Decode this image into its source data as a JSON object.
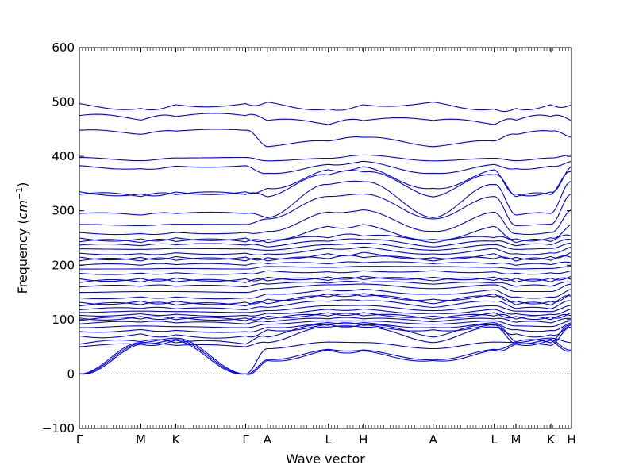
{
  "chart_data": {
    "type": "line",
    "title": "",
    "xlabel": "Wave vector",
    "ylabel": "Frequency ($cm^{-1}$)",
    "ylabel_parts": {
      "text": "Frequency (",
      "unit_base": "cm",
      "unit_exp": "−1",
      "close": ")"
    },
    "ylim": [
      -100,
      600
    ],
    "yticks": [
      -100,
      0,
      100,
      200,
      300,
      400,
      500,
      600
    ],
    "grid": false,
    "legend": "none",
    "line_color": "#0000ff",
    "zero_line": {
      "y": 0,
      "style": "dotted",
      "color": "#000000"
    },
    "xlim": [
      0,
      1
    ],
    "high_symmetry_points": [
      {
        "label": "Γ",
        "x": 0.0
      },
      {
        "label": "M",
        "x": 0.125
      },
      {
        "label": "K",
        "x": 0.196
      },
      {
        "label": "Γ",
        "x": 0.338
      },
      {
        "label": "A",
        "x": 0.382
      },
      {
        "label": "L",
        "x": 0.506
      },
      {
        "label": "H",
        "x": 0.577
      },
      {
        "label": "A",
        "x": 0.719
      },
      {
        "label": "L",
        "x": 0.843
      },
      {
        "label": "M",
        "x": 0.887
      },
      {
        "label": "K",
        "x": 958,
        "x_unit_note": ""
      },
      {
        "label": "H",
        "x": 1.0
      }
    ],
    "segments": [
      {
        "from": "Γ",
        "to": "M"
      },
      {
        "from": "M",
        "to": "K"
      },
      {
        "from": "K",
        "to": "Γ"
      },
      {
        "from": "Γ",
        "to": "A"
      },
      {
        "from": "A",
        "to": "L"
      },
      {
        "from": "L",
        "to": "H"
      },
      {
        "from": "H",
        "to": "A"
      },
      {
        "from": "A",
        "to": "L"
      },
      {
        "from": "L",
        "to": "M"
      },
      {
        "from": "M",
        "to": "K"
      },
      {
        "from": "K",
        "to": "H"
      }
    ],
    "bands_at_gamma": [
      0,
      0,
      0,
      50,
      55,
      70,
      78,
      85,
      92,
      98,
      103,
      108,
      113,
      118,
      125,
      132,
      140,
      150,
      160,
      168,
      175,
      185,
      193,
      200,
      208,
      215,
      222,
      230,
      237,
      243,
      250,
      260,
      275,
      295,
      330,
      335,
      383,
      398,
      448,
      475,
      497
    ],
    "bands_at_A": [
      25,
      27,
      55,
      60,
      80,
      85,
      92,
      97,
      103,
      110,
      115,
      122,
      130,
      140,
      152,
      163,
      170,
      178,
      192,
      200,
      205,
      212,
      220,
      228,
      235,
      245,
      250,
      285,
      285,
      330,
      345,
      385,
      400,
      460,
      500
    ],
    "bands_at_H": [
      43,
      45,
      88,
      90,
      95,
      100,
      108,
      118,
      128,
      142,
      150,
      165,
      170,
      180,
      195,
      205,
      220,
      235,
      245,
      255,
      295,
      340,
      370,
      385,
      400,
      450,
      495
    ]
  }
}
